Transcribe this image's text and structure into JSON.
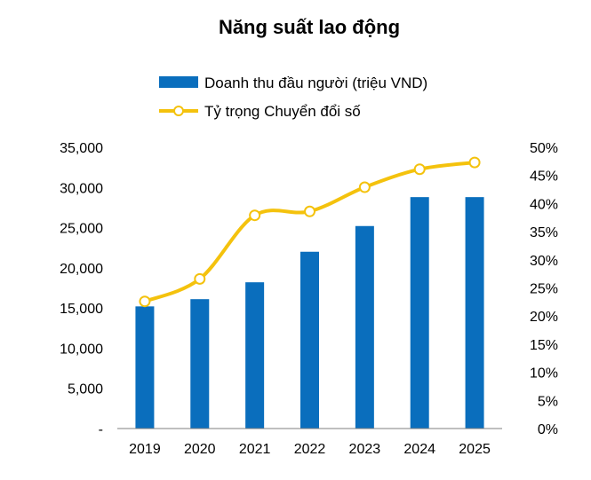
{
  "chart_data": {
    "type": "bar",
    "title": "Năng suất lao động",
    "categories": [
      "2019",
      "2020",
      "2021",
      "2022",
      "2023",
      "2024",
      "2025"
    ],
    "series": [
      {
        "name": "Doanh thu đầu người (triệu VND)",
        "type": "bar",
        "axis": "left",
        "color": "#0a6ebd",
        "values": [
          15200,
          16100,
          18200,
          22000,
          25200,
          28800,
          28800
        ]
      },
      {
        "name": "Tỷ trọng Chuyển đổi số",
        "type": "line",
        "axis": "right",
        "color": "#f4c20d",
        "marker": "open-circle",
        "smooth": true,
        "values": [
          22.6,
          26.6,
          37.9,
          38.6,
          42.9,
          46.1,
          47.3
        ]
      }
    ],
    "y_left": {
      "lim": [
        0,
        35000
      ],
      "ticks": [
        "-",
        "5,000",
        "10,000",
        "15,000",
        "20,000",
        "25,000",
        "30,000",
        "35,000"
      ]
    },
    "y_right": {
      "lim": [
        0,
        50
      ],
      "ticks": [
        "0%",
        "5%",
        "10%",
        "15%",
        "20%",
        "25%",
        "30%",
        "35%",
        "40%",
        "45%",
        "50%"
      ]
    },
    "grid": false,
    "legend": "top"
  }
}
